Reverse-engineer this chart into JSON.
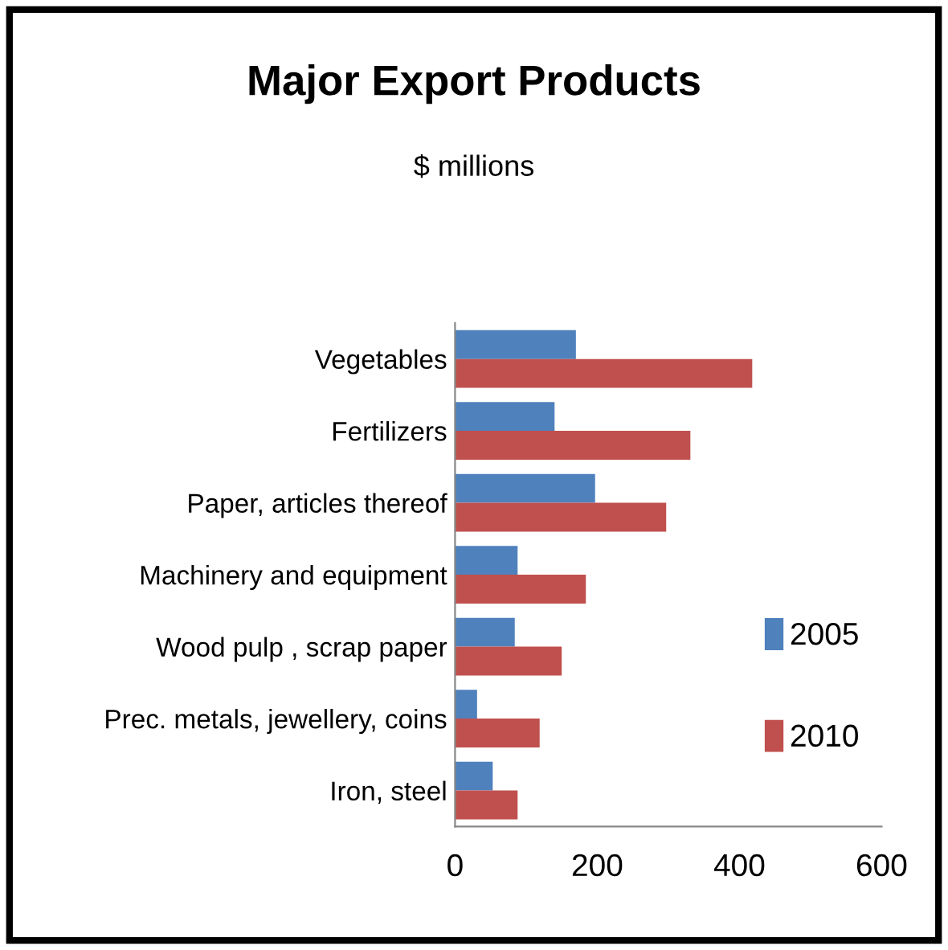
{
  "chart_data": {
    "type": "bar",
    "orientation": "horizontal",
    "title": "Major Export Products",
    "subtitle": "$ millions",
    "categories": [
      "Vegetables",
      "Fertilizers",
      "Paper, articles thereof",
      "Machinery and equipment",
      "Wood pulp , scrap paper",
      "Prec. metals, jewellery, coins",
      "Iron, steel"
    ],
    "series": [
      {
        "name": "2005",
        "color": "#4f81bd",
        "values": [
          170,
          140,
          197,
          88,
          84,
          31,
          53
        ]
      },
      {
        "name": "2010",
        "color": "#c0504d",
        "values": [
          418,
          331,
          297,
          184,
          150,
          119,
          88
        ]
      }
    ],
    "xlim": [
      0,
      600
    ],
    "xticks": [
      0,
      200,
      400,
      600
    ],
    "grid": false,
    "legend": "right"
  }
}
